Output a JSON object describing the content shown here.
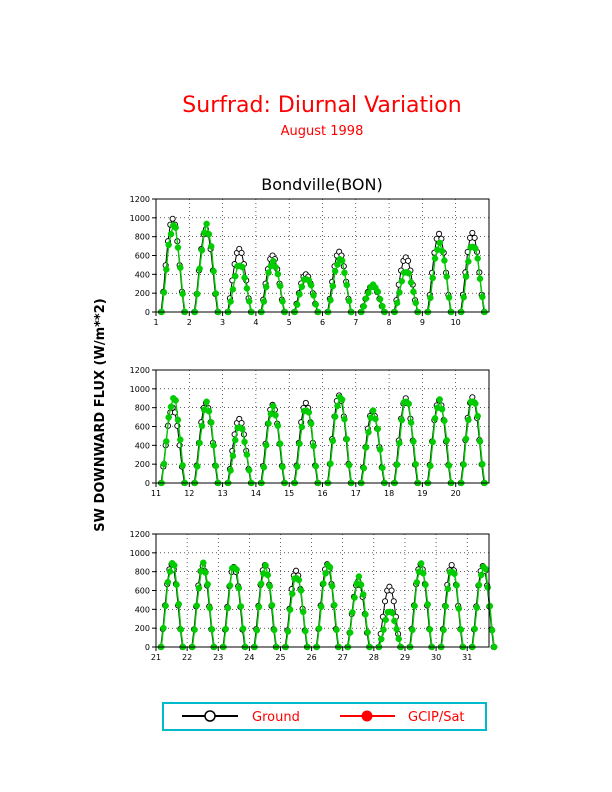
{
  "header": {
    "title": "Surfrad: Diurnal Variation",
    "subtitle": "August 1998",
    "station": "Bondville(BON)"
  },
  "legend": {
    "ground_label": "Ground",
    "sat_label": "GCIP/Sat"
  },
  "colors": {
    "title": "#ff0000",
    "ground": "#000000",
    "sat": "#00cc00",
    "legend_border": "#00bbcc",
    "grid": "#000000"
  },
  "chart_data": {
    "type": "line",
    "ylabel": "SW DOWNWARD FLUX (W/m**2)",
    "ylim": [
      0,
      1200
    ],
    "yticks": [
      "0",
      "200",
      "400",
      "600",
      "800",
      "1000",
      "1200"
    ],
    "grid": true,
    "legend_position": "bottom",
    "panels": [
      {
        "xlim": [
          1,
          11
        ],
        "xticks": [
          "1",
          "2",
          "3",
          "4",
          "5",
          "6",
          "7",
          "8",
          "9",
          "10"
        ],
        "ground_peaks": [
          990,
          880,
          670,
          600,
          400,
          640,
          280,
          580,
          830,
          840
        ],
        "sat_peaks": [
          920,
          900,
          500,
          530,
          360,
          560,
          280,
          430,
          720,
          720
        ]
      },
      {
        "xlim": [
          11,
          21
        ],
        "xticks": [
          "11",
          "12",
          "13",
          "14",
          "15",
          "16",
          "17",
          "18",
          "19",
          "20"
        ],
        "ground_peaks": [
          800,
          850,
          680,
          830,
          850,
          930,
          760,
          900,
          880,
          910
        ],
        "sat_peaks": [
          900,
          830,
          600,
          800,
          800,
          910,
          740,
          880,
          870,
          900
        ]
      },
      {
        "xlim": [
          21,
          31.7
        ],
        "xticks": [
          "21",
          "22",
          "23",
          "24",
          "25",
          "26",
          "27",
          "28",
          "29",
          "30",
          "31"
        ],
        "ground_peaks": [
          880,
          860,
          850,
          870,
          810,
          880,
          700,
          640,
          880,
          870,
          860
        ],
        "sat_peaks": [
          890,
          860,
          860,
          850,
          760,
          870,
          720,
          380,
          870,
          830,
          850
        ]
      }
    ]
  }
}
